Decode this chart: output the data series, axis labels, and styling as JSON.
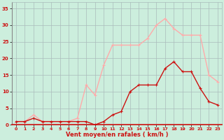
{
  "hours": [
    0,
    1,
    2,
    3,
    4,
    5,
    6,
    7,
    8,
    9,
    10,
    11,
    12,
    13,
    14,
    15,
    16,
    17,
    18,
    19,
    20,
    21,
    22,
    23
  ],
  "wind_mean": [
    1,
    1,
    2,
    1,
    1,
    1,
    1,
    1,
    1,
    0,
    1,
    3,
    4,
    10,
    12,
    12,
    12,
    17,
    19,
    16,
    16,
    11,
    7,
    6
  ],
  "wind_gust": [
    1,
    1,
    3,
    1,
    1,
    1,
    1,
    2,
    12,
    9,
    18,
    24,
    24,
    24,
    24,
    26,
    30,
    32,
    29,
    27,
    27,
    27,
    15,
    13
  ],
  "xlabel": "Vent moyen/en rafales ( km/h )",
  "xlim": [
    -0.5,
    23.5
  ],
  "ylim": [
    0,
    37
  ],
  "ytick_vals": [
    0,
    5,
    10,
    15,
    20,
    25,
    30,
    35
  ],
  "ytick_labels": [
    "0",
    "5",
    "10",
    "15",
    "20",
    "25",
    "30",
    "35"
  ],
  "xticks": [
    0,
    1,
    2,
    3,
    4,
    5,
    6,
    7,
    8,
    9,
    10,
    11,
    12,
    13,
    14,
    15,
    16,
    17,
    18,
    19,
    20,
    21,
    22,
    23
  ],
  "bg_color": "#cceedd",
  "grid_color": "#aabbbb",
  "mean_color": "#cc1111",
  "gust_color": "#ffaaaa",
  "tick_color": "#cc1111",
  "xlabel_color": "#cc1111",
  "line_width": 1.0,
  "marker_size": 2.5
}
